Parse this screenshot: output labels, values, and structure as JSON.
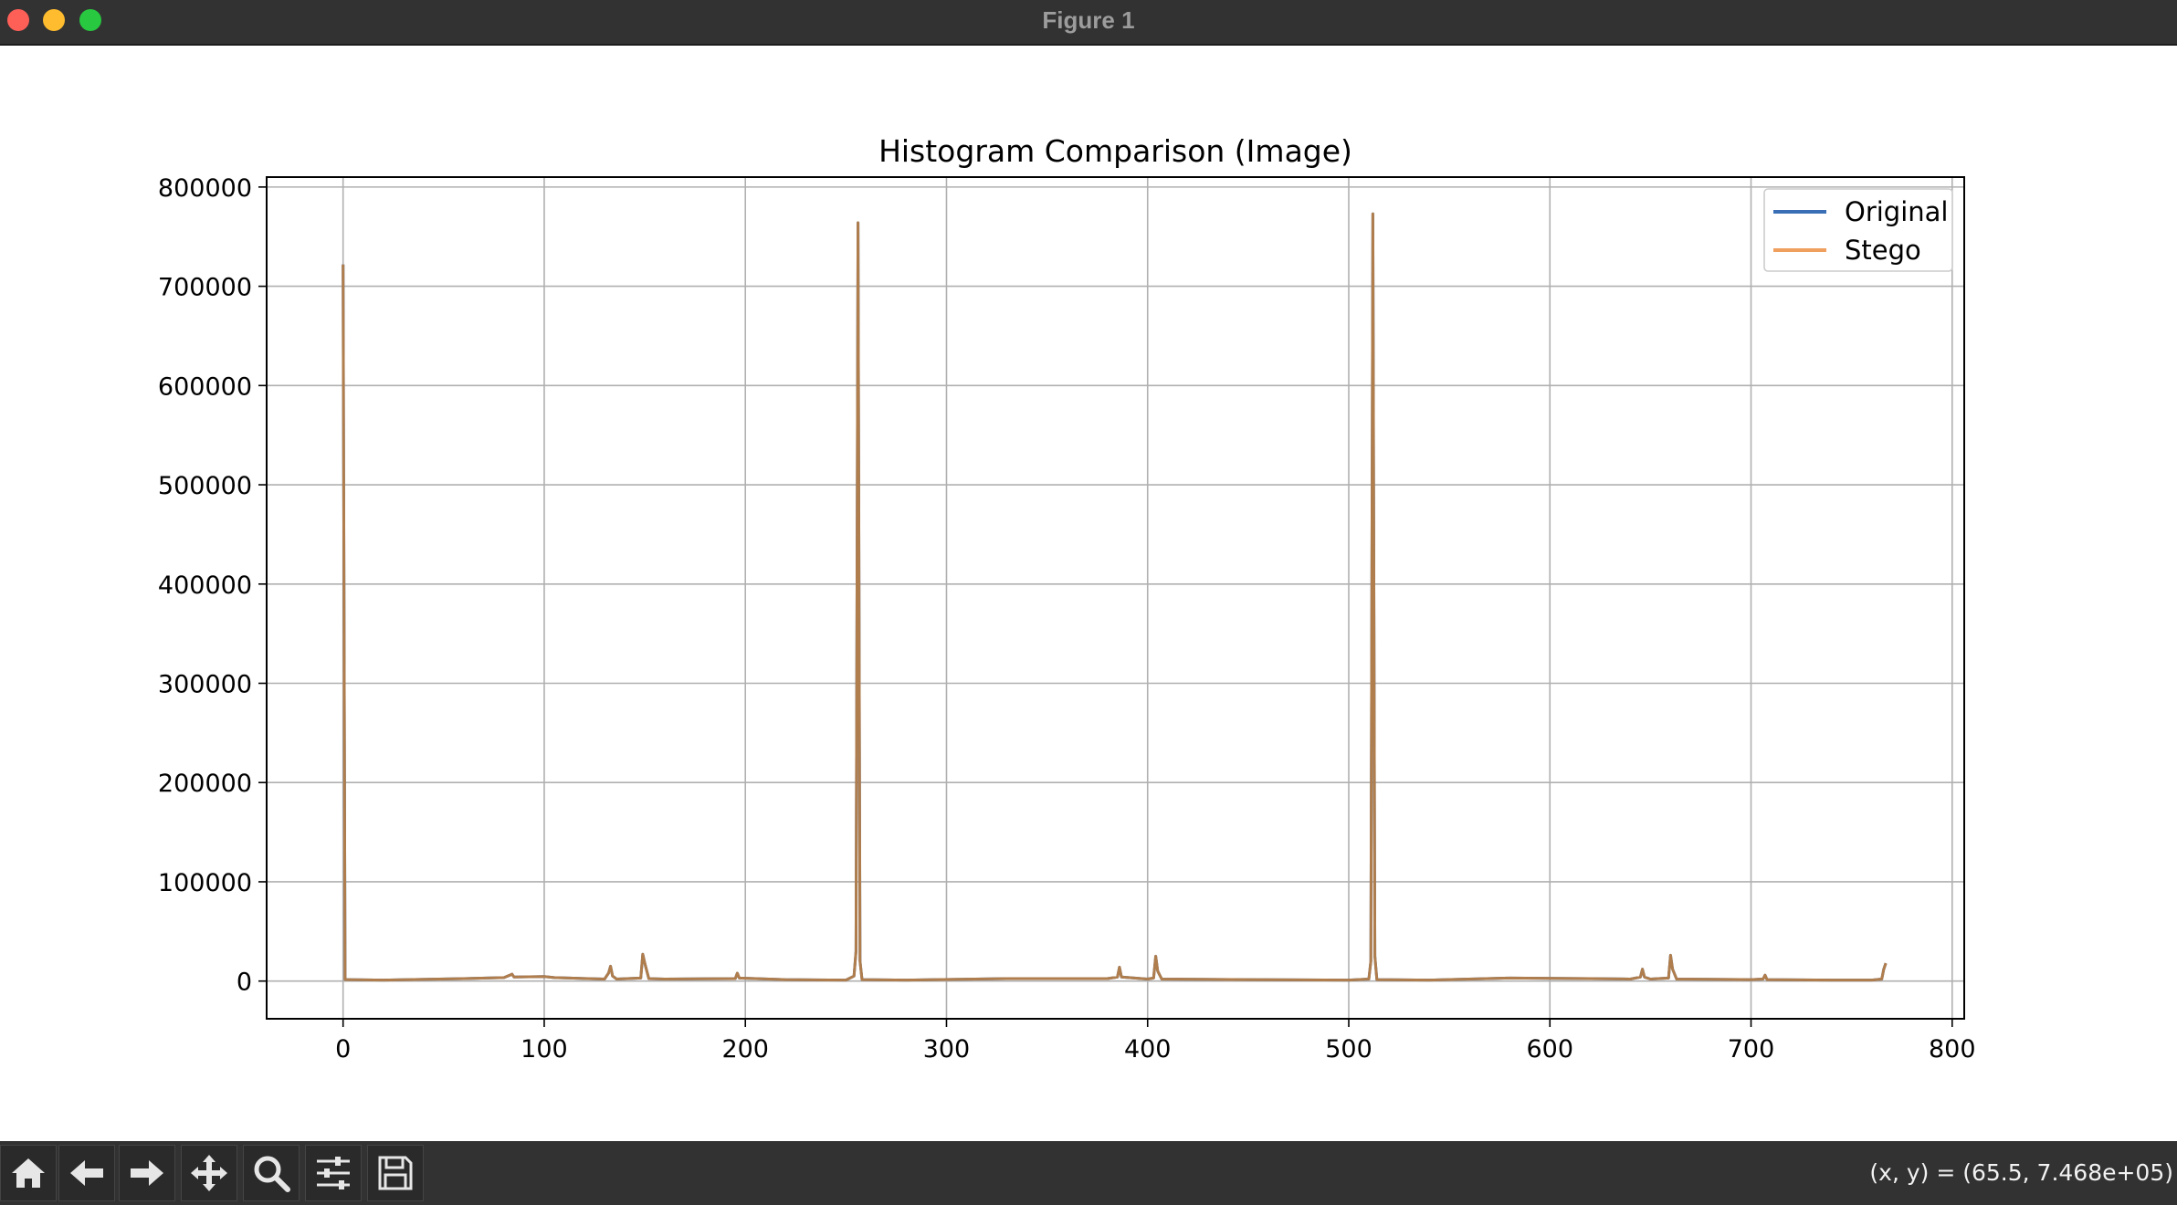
{
  "window": {
    "title": "Figure 1"
  },
  "toolbar": {
    "buttons": [
      {
        "icon": "home-icon",
        "label": "Home"
      },
      {
        "icon": "back-arrow-icon",
        "label": "Back"
      },
      {
        "icon": "forward-arrow-icon",
        "label": "Forward"
      },
      {
        "icon": "pan-icon",
        "label": "Pan"
      },
      {
        "icon": "zoom-icon",
        "label": "Zoom"
      },
      {
        "icon": "configure-subplots-icon",
        "label": "Subplots"
      },
      {
        "icon": "save-icon",
        "label": "Save"
      }
    ],
    "coordinate_readout": "(x, y) = (65.5, 7.468e+05)"
  },
  "colors": {
    "original": "#3a6fb5",
    "stego": "#ef9f5e",
    "overlap": "#b07d4c",
    "grid": "#b0b0b0"
  },
  "chart_data": {
    "type": "line",
    "title": "Histogram Comparison (Image)",
    "xlabel": "",
    "ylabel": "",
    "xlim": [
      -38,
      806
    ],
    "ylim": [
      -38000,
      810000
    ],
    "xticks": [
      0,
      100,
      200,
      300,
      400,
      500,
      600,
      700,
      800
    ],
    "yticks": [
      0,
      100000,
      200000,
      300000,
      400000,
      500000,
      600000,
      700000,
      800000
    ],
    "xtick_labels": [
      "0",
      "100",
      "200",
      "300",
      "400",
      "500",
      "600",
      "700",
      "800"
    ],
    "ytick_labels": [
      "0",
      "100000",
      "200000",
      "300000",
      "400000",
      "500000",
      "600000",
      "700000",
      "800000"
    ],
    "grid": true,
    "legend": "upper right",
    "series": [
      {
        "name": "Original",
        "x": [
          0,
          1,
          20,
          60,
          80,
          83,
          84,
          85,
          100,
          105,
          130,
          132,
          133,
          134,
          136,
          148,
          149,
          150,
          152,
          160,
          195,
          196,
          197,
          220,
          250,
          254,
          255,
          256,
          257,
          258,
          280,
          330,
          380,
          385,
          386,
          387,
          400,
          403,
          404,
          405,
          407,
          450,
          500,
          510,
          511,
          512,
          513,
          514,
          540,
          580,
          620,
          640,
          645,
          646,
          647,
          650,
          659,
          660,
          661,
          663,
          700,
          706,
          707,
          708,
          740,
          760,
          765,
          766,
          767
        ],
        "values": [
          722000,
          1500,
          1000,
          2500,
          3500,
          6000,
          7000,
          4000,
          4500,
          3500,
          2000,
          8000,
          15000,
          5000,
          2000,
          3000,
          27000,
          18000,
          2500,
          2000,
          2500,
          8000,
          3000,
          1500,
          1000,
          5000,
          30000,
          764000,
          20000,
          1500,
          1000,
          2500,
          2500,
          4000,
          14000,
          4000,
          2000,
          3000,
          25000,
          10000,
          2000,
          1500,
          1000,
          2000,
          20000,
          773000,
          25000,
          1500,
          1000,
          3000,
          2500,
          2000,
          4000,
          12000,
          4000,
          2000,
          3000,
          26000,
          12000,
          2000,
          1500,
          2000,
          6000,
          1500,
          1000,
          1000,
          2000,
          12000,
          18000
        ]
      },
      {
        "name": "Stego",
        "x": [
          0,
          1,
          20,
          60,
          80,
          83,
          84,
          85,
          100,
          105,
          130,
          132,
          133,
          134,
          136,
          148,
          149,
          150,
          152,
          160,
          195,
          196,
          197,
          220,
          250,
          254,
          255,
          256,
          257,
          258,
          280,
          330,
          380,
          385,
          386,
          387,
          400,
          403,
          404,
          405,
          407,
          450,
          500,
          510,
          511,
          512,
          513,
          514,
          540,
          580,
          620,
          640,
          645,
          646,
          647,
          650,
          659,
          660,
          661,
          663,
          700,
          706,
          707,
          708,
          740,
          760,
          765,
          766,
          767
        ],
        "values": [
          722000,
          1500,
          1000,
          2500,
          3500,
          6000,
          7000,
          4000,
          4500,
          3500,
          2000,
          8000,
          15000,
          5000,
          2000,
          3000,
          27000,
          18000,
          2500,
          2000,
          2500,
          8000,
          3000,
          1500,
          1000,
          5000,
          30000,
          764000,
          20000,
          1500,
          1000,
          2500,
          2500,
          4000,
          14000,
          4000,
          2000,
          3000,
          25000,
          10000,
          2000,
          1500,
          1000,
          2000,
          20000,
          773000,
          25000,
          1500,
          1000,
          3000,
          2500,
          2000,
          4000,
          12000,
          4000,
          2000,
          3000,
          26000,
          12000,
          2000,
          1500,
          2000,
          6000,
          1500,
          1000,
          1000,
          2000,
          12000,
          18000
        ]
      }
    ]
  }
}
